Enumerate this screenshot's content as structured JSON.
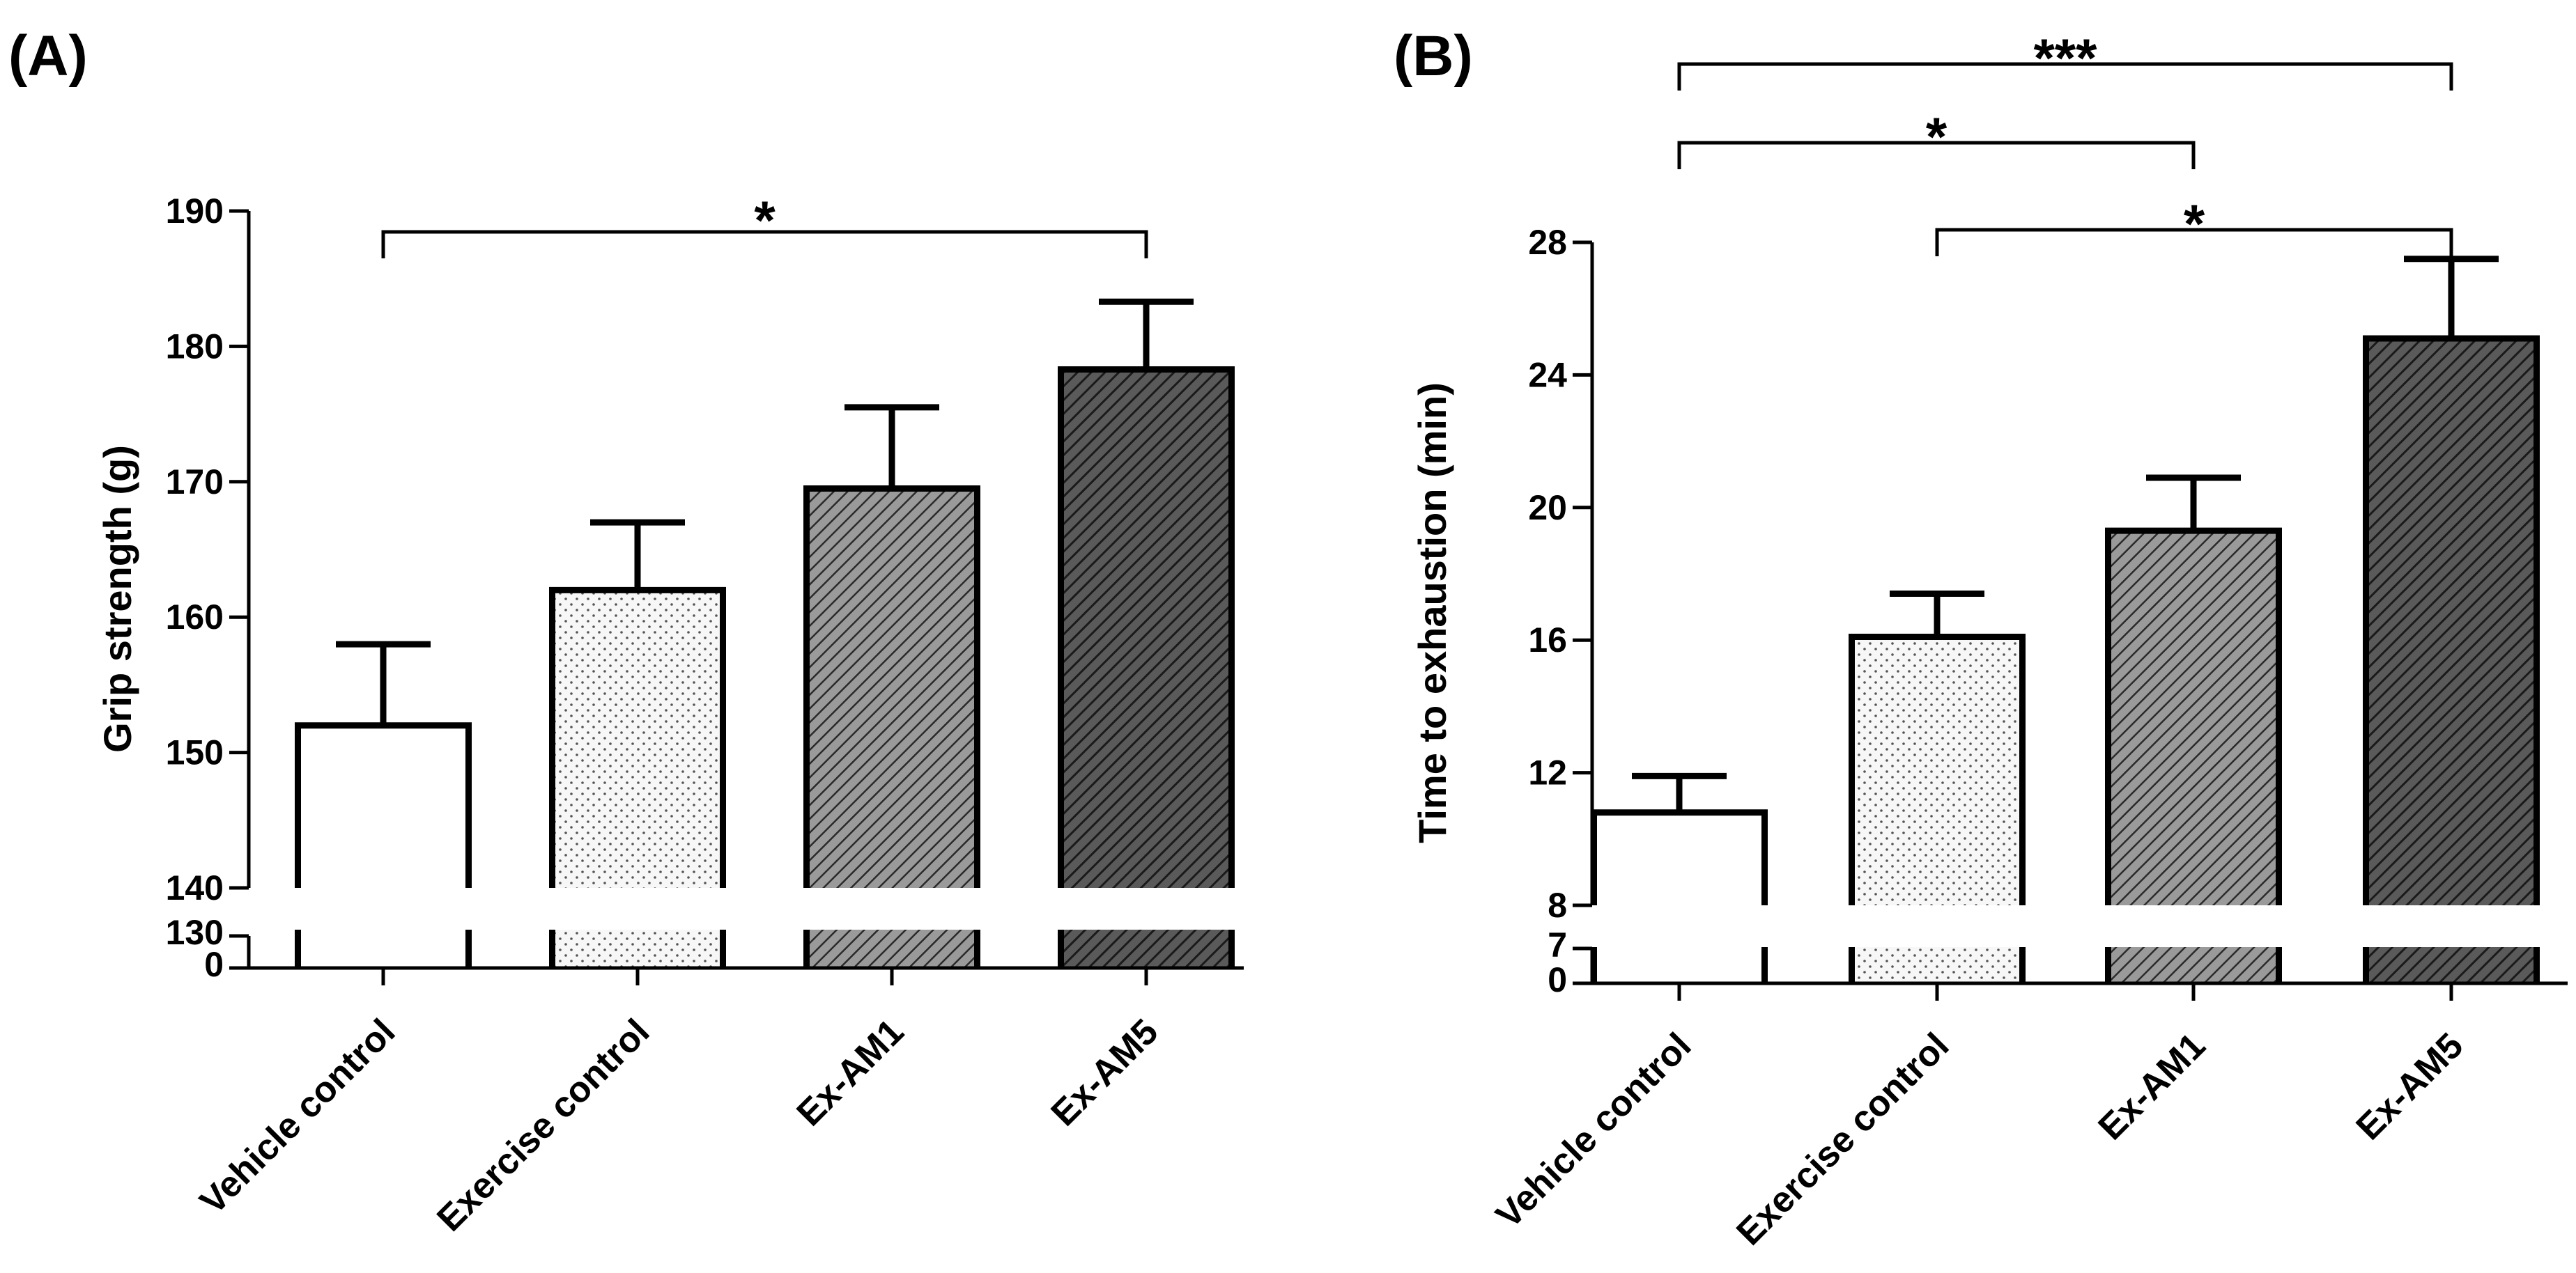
{
  "chart_data": [
    {
      "type": "bar",
      "panel_label": "(A)",
      "title": "",
      "xlabel": "",
      "ylabel": "Grip strength (g)",
      "categories": [
        "Vehicle control",
        "Exercise control",
        "Ex-AM1",
        "Ex-AM5"
      ],
      "values": [
        152,
        162,
        169.5,
        178.3
      ],
      "errors": [
        6,
        5,
        6,
        5
      ],
      "patterns": [
        "white",
        "dots",
        "hatch-light",
        "hatch-dark"
      ],
      "ylim": [
        140,
        190
      ],
      "yticks": [
        "140",
        "150",
        "160",
        "170",
        "180",
        "190"
      ],
      "axis_break": true,
      "break_ticks": [
        "0",
        "130"
      ],
      "significance": [
        {
          "from": 0,
          "to": 3,
          "label": "*"
        }
      ]
    },
    {
      "type": "bar",
      "panel_label": "(B)",
      "title": "",
      "xlabel": "",
      "ylabel": "Time to exhaustion (min)",
      "categories": [
        "Vehicle control",
        "Exercise control",
        "Ex-AM1",
        "Ex-AM5"
      ],
      "values": [
        10.8,
        16.1,
        19.3,
        25.1
      ],
      "errors": [
        1.1,
        1.3,
        1.6,
        2.4
      ],
      "patterns": [
        "white",
        "dots",
        "hatch-light",
        "hatch-dark"
      ],
      "ylim": [
        8,
        28
      ],
      "yticks": [
        "8",
        "12",
        "16",
        "20",
        "24",
        "28"
      ],
      "axis_break": true,
      "break_ticks": [
        "0",
        "7"
      ],
      "significance": [
        {
          "from": 0,
          "to": 3,
          "label": "***"
        },
        {
          "from": 0,
          "to": 2,
          "label": "*"
        },
        {
          "from": 1,
          "to": 3,
          "label": "*"
        }
      ]
    }
  ]
}
